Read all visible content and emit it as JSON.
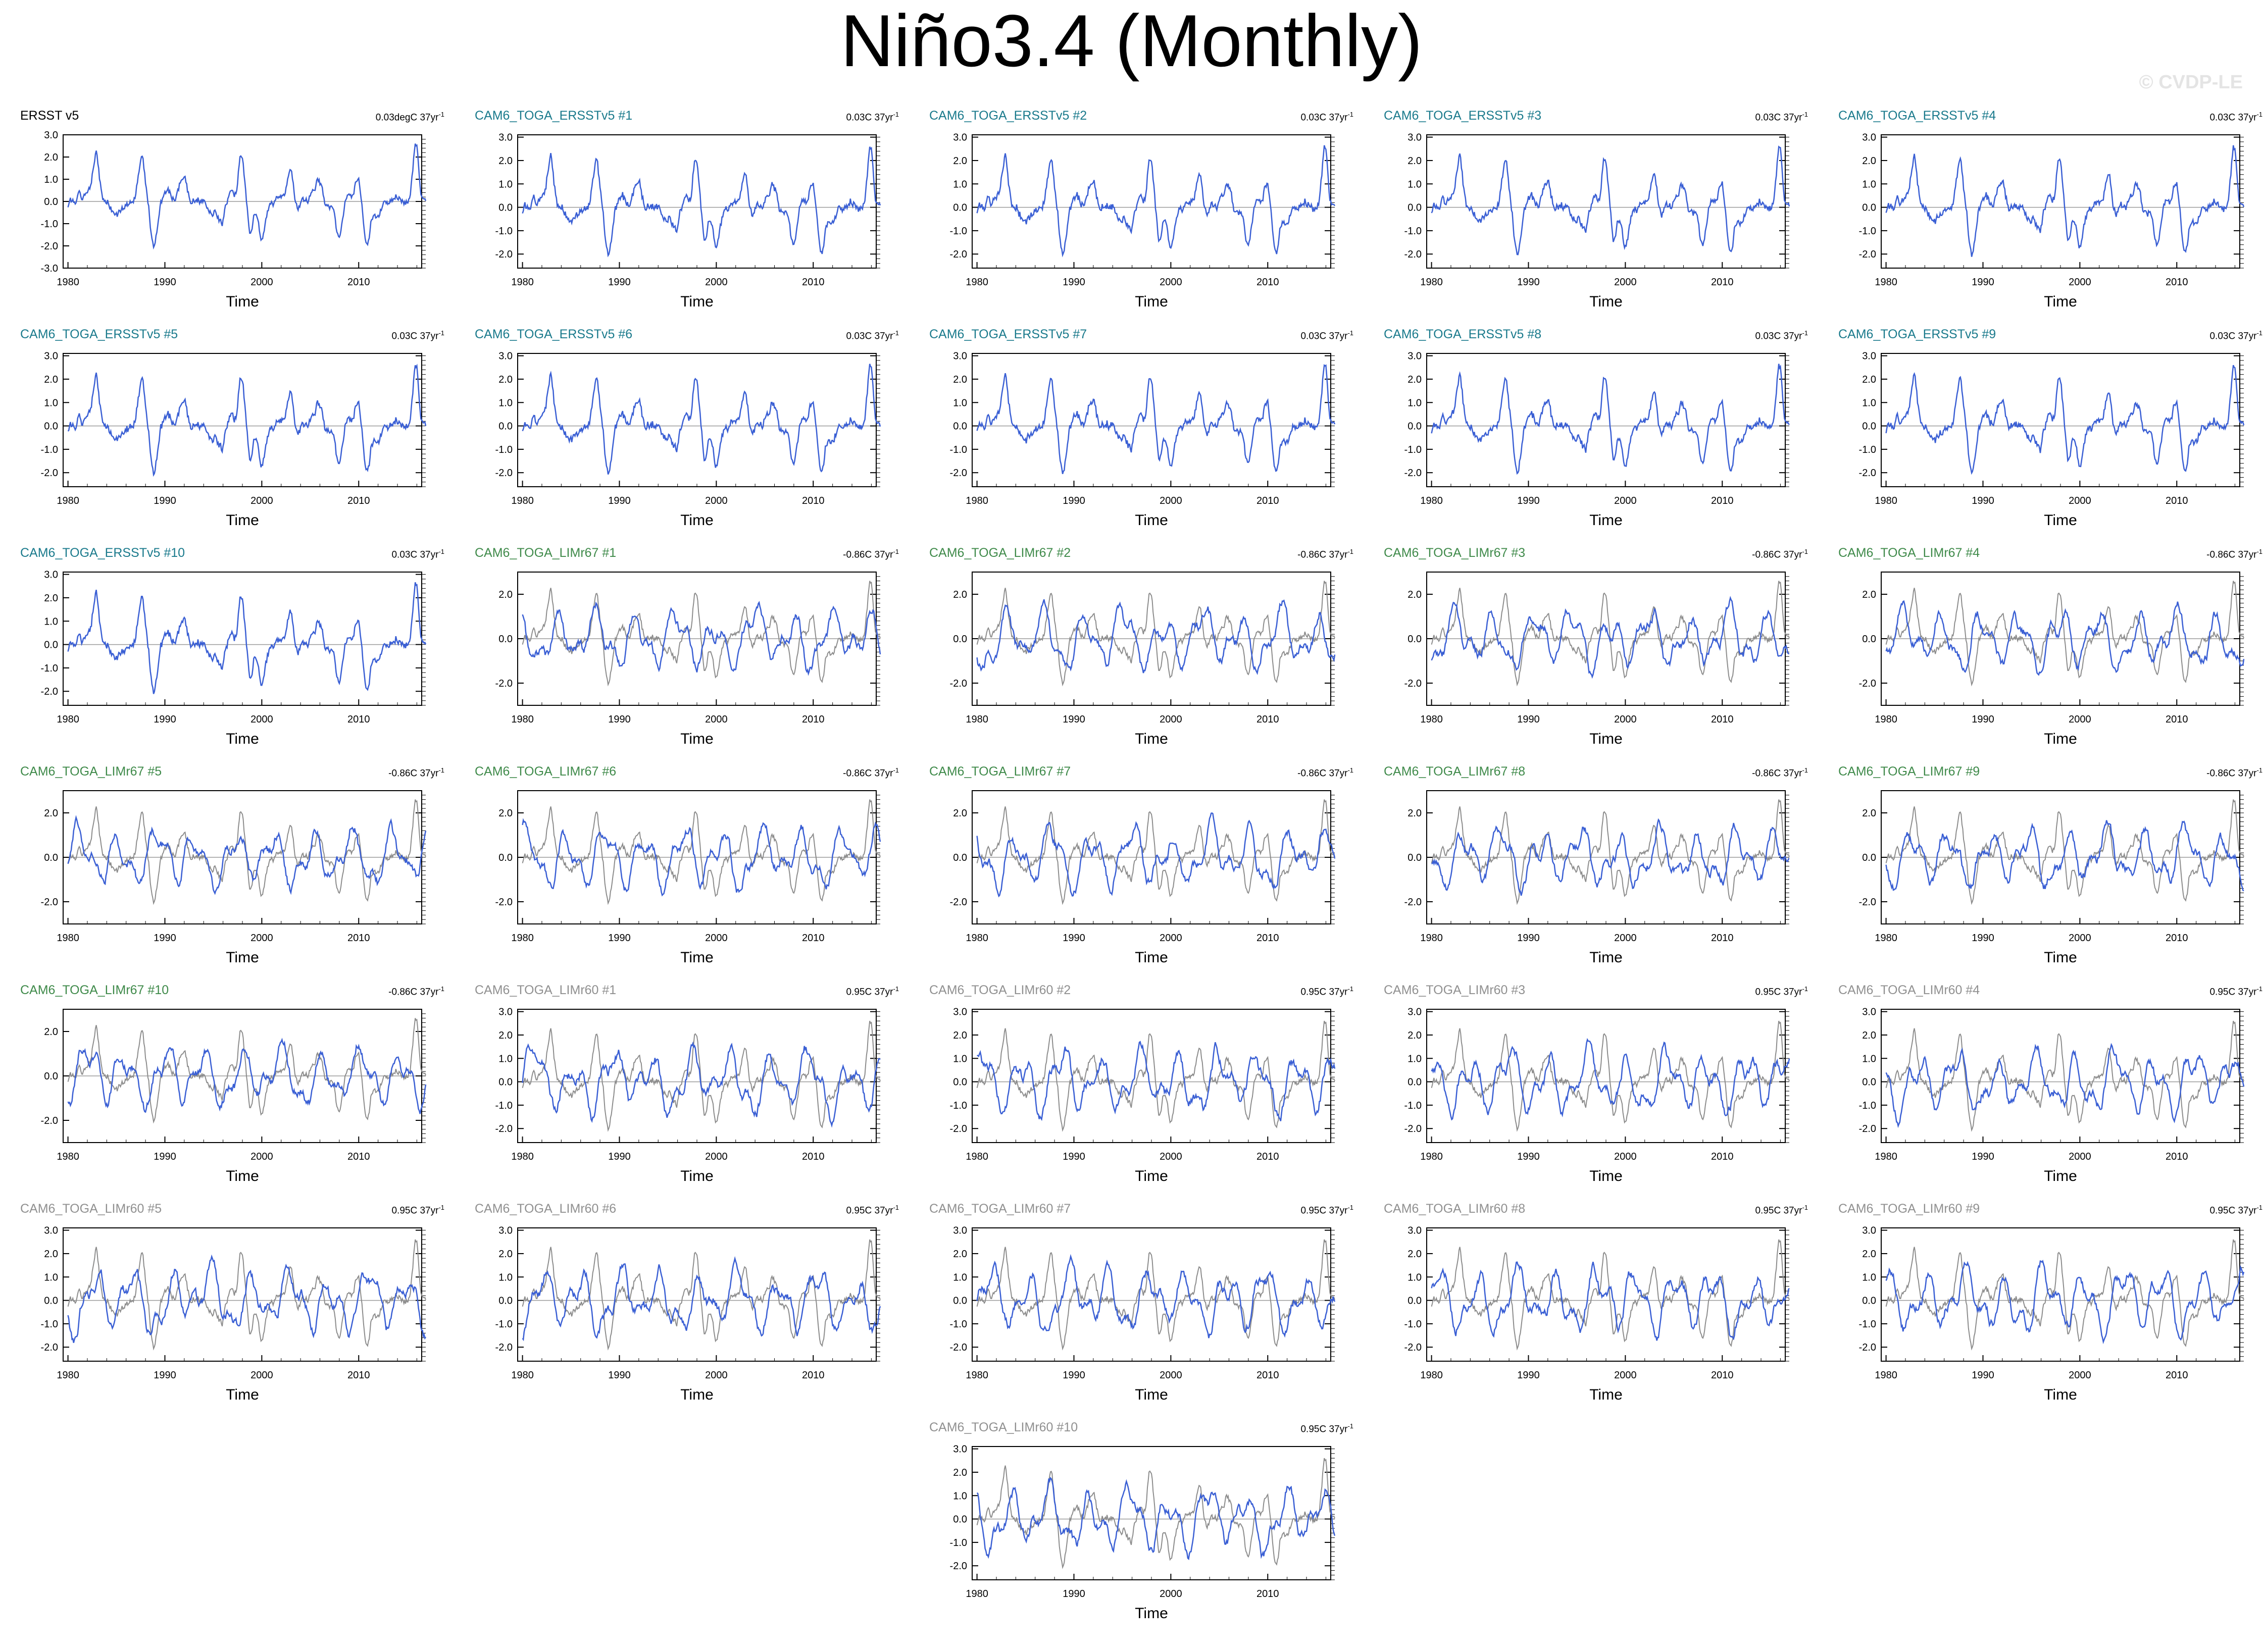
{
  "title": "Niño3.4 (Monthly)",
  "watermark": "© CVDP-LE",
  "colors": {
    "ersst": "#000000",
    "ersst_ens": "#1a7a8c",
    "lim67": "#3f8a4a",
    "lim60": "#909090",
    "line_model": "#3a5fd4",
    "line_obs": "#8c8c8c",
    "zero_line": "#9a9a9a"
  },
  "chart_data": [
    {
      "type": "line",
      "title": "ERSST v5",
      "trend": "0.03degC 37yr",
      "trend_unit_exp": "-1",
      "title_color": "ersst",
      "obs_overlay": false,
      "seed": 1,
      "ylim": [
        -3,
        3
      ],
      "yticks": [
        "3.0",
        "2.0",
        "1.0",
        "0.0",
        "-1.0",
        "-2.0",
        "-3.0"
      ],
      "ytick_values": [
        3,
        2,
        1,
        0,
        -1,
        -2,
        -3
      ],
      "xlim": [
        1979.5,
        2016.5
      ],
      "xticks": [
        "1980",
        "1990",
        "2000",
        "2010"
      ],
      "xlabel": "Time"
    },
    {
      "type": "line",
      "title": "CAM6_TOGA_ERSSTv5 #1",
      "trend": "0.03C 37yr",
      "trend_unit_exp": "-1",
      "title_color": "ersst_ens",
      "obs_overlay": false,
      "seed": 2,
      "ylim": [
        -2.6,
        3.1
      ],
      "yticks": [
        "3.0",
        "2.0",
        "1.0",
        "0.0",
        "-1.0",
        "-2.0"
      ],
      "ytick_values": [
        3,
        2,
        1,
        0,
        -1,
        -2
      ],
      "xlim": [
        1979.5,
        2016.5
      ],
      "xticks": [
        "1980",
        "1990",
        "2000",
        "2010"
      ],
      "xlabel": "Time"
    },
    {
      "type": "line",
      "title": "CAM6_TOGA_ERSSTv5 #2",
      "trend": "0.03C 37yr",
      "trend_unit_exp": "-1",
      "title_color": "ersst_ens",
      "obs_overlay": false,
      "seed": 3,
      "ylim": [
        -2.6,
        3.1
      ],
      "yticks": [
        "3.0",
        "2.0",
        "1.0",
        "0.0",
        "-1.0",
        "-2.0"
      ],
      "ytick_values": [
        3,
        2,
        1,
        0,
        -1,
        -2
      ],
      "xlim": [
        1979.5,
        2016.5
      ],
      "xticks": [
        "1980",
        "1990",
        "2000",
        "2010"
      ],
      "xlabel": "Time"
    },
    {
      "type": "line",
      "title": "CAM6_TOGA_ERSSTv5 #3",
      "trend": "0.03C 37yr",
      "trend_unit_exp": "-1",
      "title_color": "ersst_ens",
      "obs_overlay": false,
      "seed": 4,
      "ylim": [
        -2.6,
        3.1
      ],
      "yticks": [
        "3.0",
        "2.0",
        "1.0",
        "0.0",
        "-1.0",
        "-2.0"
      ],
      "ytick_values": [
        3,
        2,
        1,
        0,
        -1,
        -2
      ],
      "xlim": [
        1979.5,
        2016.5
      ],
      "xticks": [
        "1980",
        "1990",
        "2000",
        "2010"
      ],
      "xlabel": "Time"
    },
    {
      "type": "line",
      "title": "CAM6_TOGA_ERSSTv5 #4",
      "trend": "0.03C 37yr",
      "trend_unit_exp": "-1",
      "title_color": "ersst_ens",
      "obs_overlay": false,
      "seed": 5,
      "ylim": [
        -2.6,
        3.1
      ],
      "yticks": [
        "3.0",
        "2.0",
        "1.0",
        "0.0",
        "-1.0",
        "-2.0"
      ],
      "ytick_values": [
        3,
        2,
        1,
        0,
        -1,
        -2
      ],
      "xlim": [
        1979.5,
        2016.5
      ],
      "xticks": [
        "1980",
        "1990",
        "2000",
        "2010"
      ],
      "xlabel": "Time"
    },
    {
      "type": "line",
      "title": "CAM6_TOGA_ERSSTv5 #5",
      "trend": "0.03C 37yr",
      "trend_unit_exp": "-1",
      "title_color": "ersst_ens",
      "obs_overlay": false,
      "seed": 6,
      "ylim": [
        -2.6,
        3.1
      ],
      "yticks": [
        "3.0",
        "2.0",
        "1.0",
        "0.0",
        "-1.0",
        "-2.0"
      ],
      "ytick_values": [
        3,
        2,
        1,
        0,
        -1,
        -2
      ],
      "xlim": [
        1979.5,
        2016.5
      ],
      "xticks": [
        "1980",
        "1990",
        "2000",
        "2010"
      ],
      "xlabel": "Time"
    },
    {
      "type": "line",
      "title": "CAM6_TOGA_ERSSTv5 #6",
      "trend": "0.03C 37yr",
      "trend_unit_exp": "-1",
      "title_color": "ersst_ens",
      "obs_overlay": false,
      "seed": 7,
      "ylim": [
        -2.6,
        3.1
      ],
      "yticks": [
        "3.0",
        "2.0",
        "1.0",
        "0.0",
        "-1.0",
        "-2.0"
      ],
      "ytick_values": [
        3,
        2,
        1,
        0,
        -1,
        -2
      ],
      "xlim": [
        1979.5,
        2016.5
      ],
      "xticks": [
        "1980",
        "1990",
        "2000",
        "2010"
      ],
      "xlabel": "Time"
    },
    {
      "type": "line",
      "title": "CAM6_TOGA_ERSSTv5 #7",
      "trend": "0.03C 37yr",
      "trend_unit_exp": "-1",
      "title_color": "ersst_ens",
      "obs_overlay": false,
      "seed": 8,
      "ylim": [
        -2.6,
        3.1
      ],
      "yticks": [
        "3.0",
        "2.0",
        "1.0",
        "0.0",
        "-1.0",
        "-2.0"
      ],
      "ytick_values": [
        3,
        2,
        1,
        0,
        -1,
        -2
      ],
      "xlim": [
        1979.5,
        2016.5
      ],
      "xticks": [
        "1980",
        "1990",
        "2000",
        "2010"
      ],
      "xlabel": "Time"
    },
    {
      "type": "line",
      "title": "CAM6_TOGA_ERSSTv5 #8",
      "trend": "0.03C 37yr",
      "trend_unit_exp": "-1",
      "title_color": "ersst_ens",
      "obs_overlay": false,
      "seed": 9,
      "ylim": [
        -2.6,
        3.1
      ],
      "yticks": [
        "3.0",
        "2.0",
        "1.0",
        "0.0",
        "-1.0",
        "-2.0"
      ],
      "ytick_values": [
        3,
        2,
        1,
        0,
        -1,
        -2
      ],
      "xlim": [
        1979.5,
        2016.5
      ],
      "xticks": [
        "1980",
        "1990",
        "2000",
        "2010"
      ],
      "xlabel": "Time"
    },
    {
      "type": "line",
      "title": "CAM6_TOGA_ERSSTv5 #9",
      "trend": "0.03C 37yr",
      "trend_unit_exp": "-1",
      "title_color": "ersst_ens",
      "obs_overlay": false,
      "seed": 10,
      "ylim": [
        -2.6,
        3.1
      ],
      "yticks": [
        "3.0",
        "2.0",
        "1.0",
        "0.0",
        "-1.0",
        "-2.0"
      ],
      "ytick_values": [
        3,
        2,
        1,
        0,
        -1,
        -2
      ],
      "xlim": [
        1979.5,
        2016.5
      ],
      "xticks": [
        "1980",
        "1990",
        "2000",
        "2010"
      ],
      "xlabel": "Time"
    },
    {
      "type": "line",
      "title": "CAM6_TOGA_ERSSTv5 #10",
      "trend": "0.03C 37yr",
      "trend_unit_exp": "-1",
      "title_color": "ersst_ens",
      "obs_overlay": false,
      "seed": 11,
      "ylim": [
        -2.6,
        3.1
      ],
      "yticks": [
        "3.0",
        "2.0",
        "1.0",
        "0.0",
        "-1.0",
        "-2.0"
      ],
      "ytick_values": [
        3,
        2,
        1,
        0,
        -1,
        -2
      ],
      "xlim": [
        1979.5,
        2016.5
      ],
      "xticks": [
        "1980",
        "1990",
        "2000",
        "2010"
      ],
      "xlabel": "Time"
    },
    {
      "type": "line",
      "title": "CAM6_TOGA_LIMr67 #1",
      "trend": "-0.86C 37yr",
      "trend_unit_exp": "-1",
      "title_color": "lim67",
      "obs_overlay": true,
      "seed": 12,
      "ylim": [
        -3,
        3
      ],
      "yticks": [
        "2.0",
        "0.0",
        "-2.0"
      ],
      "ytick_values": [
        2,
        0,
        -2
      ],
      "xlim": [
        1979.5,
        2016.5
      ],
      "xticks": [
        "1980",
        "1990",
        "2000",
        "2010"
      ],
      "xlabel": "Time"
    },
    {
      "type": "line",
      "title": "CAM6_TOGA_LIMr67 #2",
      "trend": "-0.86C 37yr",
      "trend_unit_exp": "-1",
      "title_color": "lim67",
      "obs_overlay": true,
      "seed": 13,
      "ylim": [
        -3,
        3
      ],
      "yticks": [
        "2.0",
        "0.0",
        "-2.0"
      ],
      "ytick_values": [
        2,
        0,
        -2
      ],
      "xlim": [
        1979.5,
        2016.5
      ],
      "xticks": [
        "1980",
        "1990",
        "2000",
        "2010"
      ],
      "xlabel": "Time"
    },
    {
      "type": "line",
      "title": "CAM6_TOGA_LIMr67 #3",
      "trend": "-0.86C 37yr",
      "trend_unit_exp": "-1",
      "title_color": "lim67",
      "obs_overlay": true,
      "seed": 14,
      "ylim": [
        -3,
        3
      ],
      "yticks": [
        "2.0",
        "0.0",
        "-2.0"
      ],
      "ytick_values": [
        2,
        0,
        -2
      ],
      "xlim": [
        1979.5,
        2016.5
      ],
      "xticks": [
        "1980",
        "1990",
        "2000",
        "2010"
      ],
      "xlabel": "Time"
    },
    {
      "type": "line",
      "title": "CAM6_TOGA_LIMr67 #4",
      "trend": "-0.86C 37yr",
      "trend_unit_exp": "-1",
      "title_color": "lim67",
      "obs_overlay": true,
      "seed": 15,
      "ylim": [
        -3,
        3
      ],
      "yticks": [
        "2.0",
        "0.0",
        "-2.0"
      ],
      "ytick_values": [
        2,
        0,
        -2
      ],
      "xlim": [
        1979.5,
        2016.5
      ],
      "xticks": [
        "1980",
        "1990",
        "2000",
        "2010"
      ],
      "xlabel": "Time"
    },
    {
      "type": "line",
      "title": "CAM6_TOGA_LIMr67 #5",
      "trend": "-0.86C 37yr",
      "trend_unit_exp": "-1",
      "title_color": "lim67",
      "obs_overlay": true,
      "seed": 16,
      "ylim": [
        -3,
        3
      ],
      "yticks": [
        "2.0",
        "0.0",
        "-2.0"
      ],
      "ytick_values": [
        2,
        0,
        -2
      ],
      "xlim": [
        1979.5,
        2016.5
      ],
      "xticks": [
        "1980",
        "1990",
        "2000",
        "2010"
      ],
      "xlabel": "Time"
    },
    {
      "type": "line",
      "title": "CAM6_TOGA_LIMr67 #6",
      "trend": "-0.86C 37yr",
      "trend_unit_exp": "-1",
      "title_color": "lim67",
      "obs_overlay": true,
      "seed": 17,
      "ylim": [
        -3,
        3
      ],
      "yticks": [
        "2.0",
        "0.0",
        "-2.0"
      ],
      "ytick_values": [
        2,
        0,
        -2
      ],
      "xlim": [
        1979.5,
        2016.5
      ],
      "xticks": [
        "1980",
        "1990",
        "2000",
        "2010"
      ],
      "xlabel": "Time"
    },
    {
      "type": "line",
      "title": "CAM6_TOGA_LIMr67 #7",
      "trend": "-0.86C 37yr",
      "trend_unit_exp": "-1",
      "title_color": "lim67",
      "obs_overlay": true,
      "seed": 18,
      "ylim": [
        -3,
        3
      ],
      "yticks": [
        "2.0",
        "0.0",
        "-2.0"
      ],
      "ytick_values": [
        2,
        0,
        -2
      ],
      "xlim": [
        1979.5,
        2016.5
      ],
      "xticks": [
        "1980",
        "1990",
        "2000",
        "2010"
      ],
      "xlabel": "Time"
    },
    {
      "type": "line",
      "title": "CAM6_TOGA_LIMr67 #8",
      "trend": "-0.86C 37yr",
      "trend_unit_exp": "-1",
      "title_color": "lim67",
      "obs_overlay": true,
      "seed": 19,
      "ylim": [
        -3,
        3
      ],
      "yticks": [
        "2.0",
        "0.0",
        "-2.0"
      ],
      "ytick_values": [
        2,
        0,
        -2
      ],
      "xlim": [
        1979.5,
        2016.5
      ],
      "xticks": [
        "1980",
        "1990",
        "2000",
        "2010"
      ],
      "xlabel": "Time"
    },
    {
      "type": "line",
      "title": "CAM6_TOGA_LIMr67 #9",
      "trend": "-0.86C 37yr",
      "trend_unit_exp": "-1",
      "title_color": "lim67",
      "obs_overlay": true,
      "seed": 20,
      "ylim": [
        -3,
        3
      ],
      "yticks": [
        "2.0",
        "0.0",
        "-2.0"
      ],
      "ytick_values": [
        2,
        0,
        -2
      ],
      "xlim": [
        1979.5,
        2016.5
      ],
      "xticks": [
        "1980",
        "1990",
        "2000",
        "2010"
      ],
      "xlabel": "Time"
    },
    {
      "type": "line",
      "title": "CAM6_TOGA_LIMr67 #10",
      "trend": "-0.86C 37yr",
      "trend_unit_exp": "-1",
      "title_color": "lim67",
      "obs_overlay": true,
      "seed": 21,
      "ylim": [
        -3,
        3
      ],
      "yticks": [
        "2.0",
        "0.0",
        "-2.0"
      ],
      "ytick_values": [
        2,
        0,
        -2
      ],
      "xlim": [
        1979.5,
        2016.5
      ],
      "xticks": [
        "1980",
        "1990",
        "2000",
        "2010"
      ],
      "xlabel": "Time"
    },
    {
      "type": "line",
      "title": "CAM6_TOGA_LIMr60 #1",
      "trend": "0.95C 37yr",
      "trend_unit_exp": "-1",
      "title_color": "lim60",
      "obs_overlay": true,
      "seed": 22,
      "ylim": [
        -2.6,
        3.1
      ],
      "yticks": [
        "3.0",
        "2.0",
        "1.0",
        "0.0",
        "-1.0",
        "-2.0"
      ],
      "ytick_values": [
        3,
        2,
        1,
        0,
        -1,
        -2
      ],
      "xlim": [
        1979.5,
        2016.5
      ],
      "xticks": [
        "1980",
        "1990",
        "2000",
        "2010"
      ],
      "xlabel": "Time"
    },
    {
      "type": "line",
      "title": "CAM6_TOGA_LIMr60 #2",
      "trend": "0.95C 37yr",
      "trend_unit_exp": "-1",
      "title_color": "lim60",
      "obs_overlay": true,
      "seed": 23,
      "ylim": [
        -2.6,
        3.1
      ],
      "yticks": [
        "3.0",
        "2.0",
        "1.0",
        "0.0",
        "-1.0",
        "-2.0"
      ],
      "ytick_values": [
        3,
        2,
        1,
        0,
        -1,
        -2
      ],
      "xlim": [
        1979.5,
        2016.5
      ],
      "xticks": [
        "1980",
        "1990",
        "2000",
        "2010"
      ],
      "xlabel": "Time"
    },
    {
      "type": "line",
      "title": "CAM6_TOGA_LIMr60 #3",
      "trend": "0.95C 37yr",
      "trend_unit_exp": "-1",
      "title_color": "lim60",
      "obs_overlay": true,
      "seed": 24,
      "ylim": [
        -2.6,
        3.1
      ],
      "yticks": [
        "3.0",
        "2.0",
        "1.0",
        "0.0",
        "-1.0",
        "-2.0"
      ],
      "ytick_values": [
        3,
        2,
        1,
        0,
        -1,
        -2
      ],
      "xlim": [
        1979.5,
        2016.5
      ],
      "xticks": [
        "1980",
        "1990",
        "2000",
        "2010"
      ],
      "xlabel": "Time"
    },
    {
      "type": "line",
      "title": "CAM6_TOGA_LIMr60 #4",
      "trend": "0.95C 37yr",
      "trend_unit_exp": "-1",
      "title_color": "lim60",
      "obs_overlay": true,
      "seed": 25,
      "ylim": [
        -2.6,
        3.1
      ],
      "yticks": [
        "3.0",
        "2.0",
        "1.0",
        "0.0",
        "-1.0",
        "-2.0"
      ],
      "ytick_values": [
        3,
        2,
        1,
        0,
        -1,
        -2
      ],
      "xlim": [
        1979.5,
        2016.5
      ],
      "xticks": [
        "1980",
        "1990",
        "2000",
        "2010"
      ],
      "xlabel": "Time"
    },
    {
      "type": "line",
      "title": "CAM6_TOGA_LIMr60 #5",
      "trend": "0.95C 37yr",
      "trend_unit_exp": "-1",
      "title_color": "lim60",
      "obs_overlay": true,
      "seed": 26,
      "ylim": [
        -2.6,
        3.1
      ],
      "yticks": [
        "3.0",
        "2.0",
        "1.0",
        "0.0",
        "-1.0",
        "-2.0"
      ],
      "ytick_values": [
        3,
        2,
        1,
        0,
        -1,
        -2
      ],
      "xlim": [
        1979.5,
        2016.5
      ],
      "xticks": [
        "1980",
        "1990",
        "2000",
        "2010"
      ],
      "xlabel": "Time"
    },
    {
      "type": "line",
      "title": "CAM6_TOGA_LIMr60 #6",
      "trend": "0.95C 37yr",
      "trend_unit_exp": "-1",
      "title_color": "lim60",
      "obs_overlay": true,
      "seed": 27,
      "ylim": [
        -2.6,
        3.1
      ],
      "yticks": [
        "3.0",
        "2.0",
        "1.0",
        "0.0",
        "-1.0",
        "-2.0"
      ],
      "ytick_values": [
        3,
        2,
        1,
        0,
        -1,
        -2
      ],
      "xlim": [
        1979.5,
        2016.5
      ],
      "xticks": [
        "1980",
        "1990",
        "2000",
        "2010"
      ],
      "xlabel": "Time"
    },
    {
      "type": "line",
      "title": "CAM6_TOGA_LIMr60 #7",
      "trend": "0.95C 37yr",
      "trend_unit_exp": "-1",
      "title_color": "lim60",
      "obs_overlay": true,
      "seed": 28,
      "ylim": [
        -2.6,
        3.1
      ],
      "yticks": [
        "3.0",
        "2.0",
        "1.0",
        "0.0",
        "-1.0",
        "-2.0"
      ],
      "ytick_values": [
        3,
        2,
        1,
        0,
        -1,
        -2
      ],
      "xlim": [
        1979.5,
        2016.5
      ],
      "xticks": [
        "1980",
        "1990",
        "2000",
        "2010"
      ],
      "xlabel": "Time"
    },
    {
      "type": "line",
      "title": "CAM6_TOGA_LIMr60 #8",
      "trend": "0.95C 37yr",
      "trend_unit_exp": "-1",
      "title_color": "lim60",
      "obs_overlay": true,
      "seed": 29,
      "ylim": [
        -2.6,
        3.1
      ],
      "yticks": [
        "3.0",
        "2.0",
        "1.0",
        "0.0",
        "-1.0",
        "-2.0"
      ],
      "ytick_values": [
        3,
        2,
        1,
        0,
        -1,
        -2
      ],
      "xlim": [
        1979.5,
        2016.5
      ],
      "xticks": [
        "1980",
        "1990",
        "2000",
        "2010"
      ],
      "xlabel": "Time"
    },
    {
      "type": "line",
      "title": "CAM6_TOGA_LIMr60 #9",
      "trend": "0.95C 37yr",
      "trend_unit_exp": "-1",
      "title_color": "lim60",
      "obs_overlay": true,
      "seed": 30,
      "ylim": [
        -2.6,
        3.1
      ],
      "yticks": [
        "3.0",
        "2.0",
        "1.0",
        "0.0",
        "-1.0",
        "-2.0"
      ],
      "ytick_values": [
        3,
        2,
        1,
        0,
        -1,
        -2
      ],
      "xlim": [
        1979.5,
        2016.5
      ],
      "xticks": [
        "1980",
        "1990",
        "2000",
        "2010"
      ],
      "xlabel": "Time"
    },
    {
      "type": "line",
      "title": "CAM6_TOGA_LIMr60 #10",
      "trend": "0.95C 37yr",
      "trend_unit_exp": "-1",
      "title_color": "lim60",
      "obs_overlay": true,
      "seed": 31,
      "ylim": [
        -2.6,
        3.1
      ],
      "yticks": [
        "3.0",
        "2.0",
        "1.0",
        "0.0",
        "-1.0",
        "-2.0"
      ],
      "ytick_values": [
        3,
        2,
        1,
        0,
        -1,
        -2
      ],
      "xlim": [
        1979.5,
        2016.5
      ],
      "xticks": [
        "1980",
        "1990",
        "2000",
        "2010"
      ],
      "xlabel": "Time"
    }
  ]
}
